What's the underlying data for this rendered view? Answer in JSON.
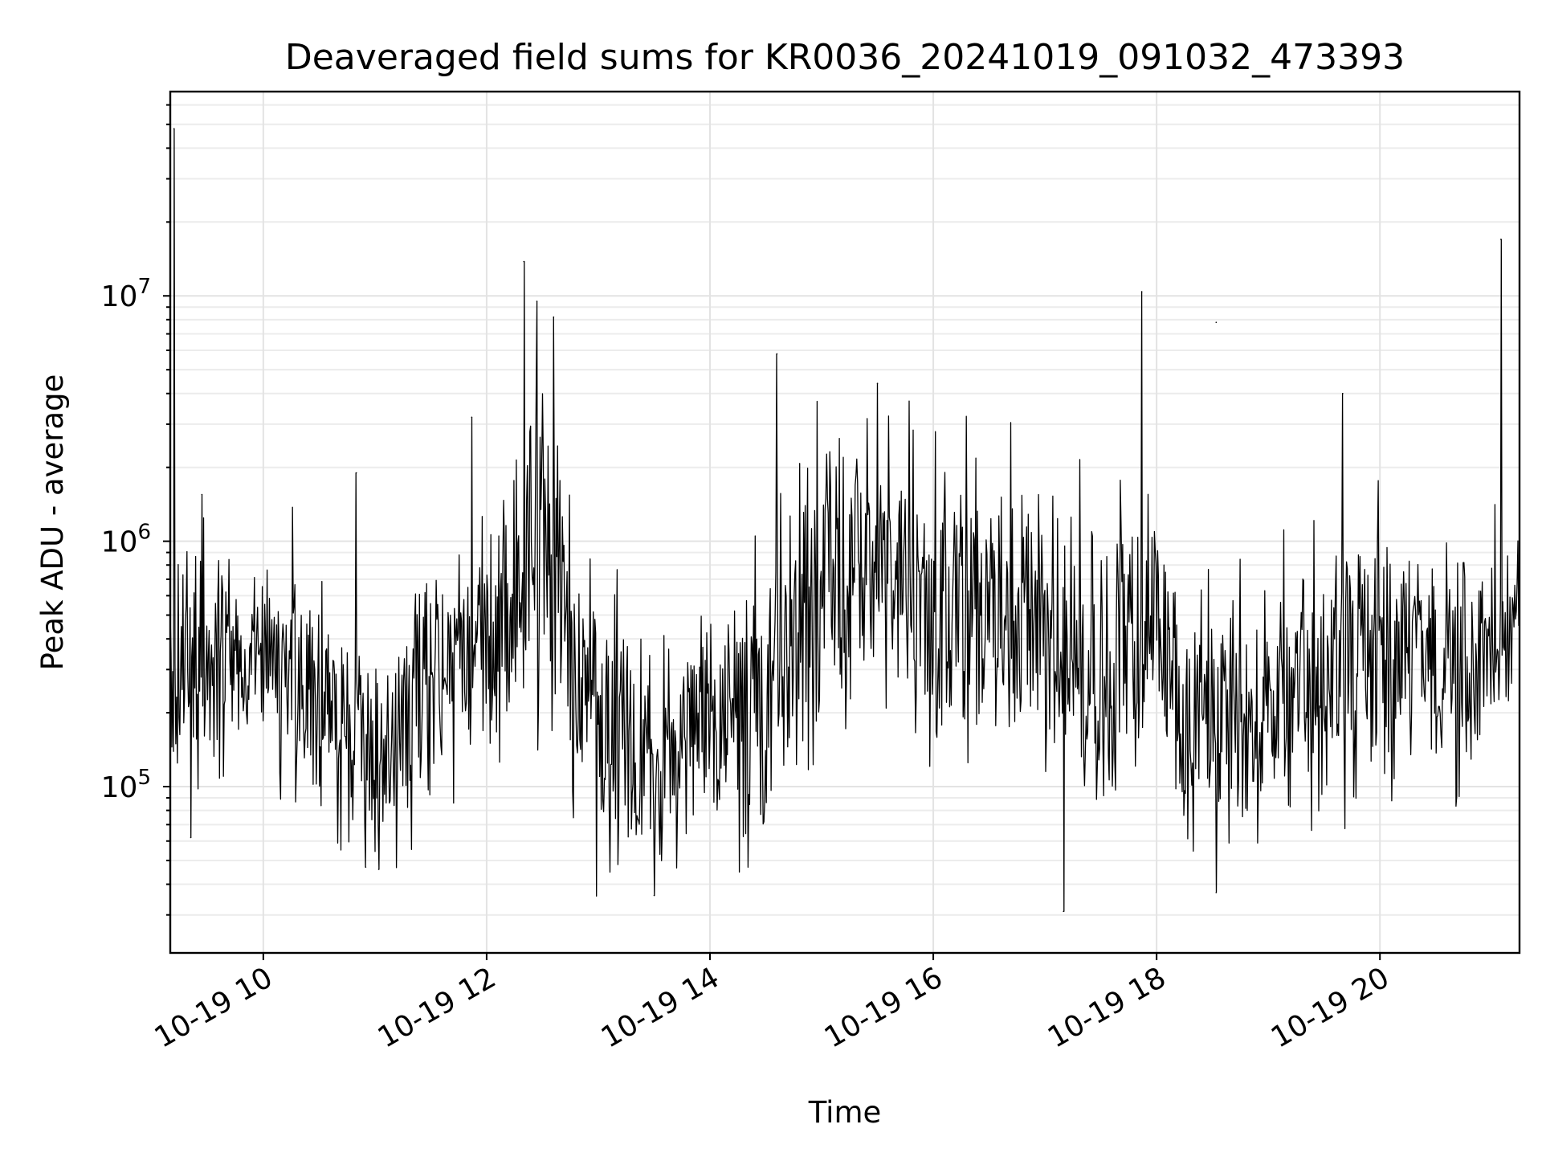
{
  "chart_data": {
    "type": "line",
    "title": "Deaveraged field sums for KR0036_20241019_091032_473393",
    "xlabel": "Time",
    "ylabel": "Peak ADU - average",
    "yscale": "log",
    "grid": true,
    "legend": "none",
    "xlim": [
      "2024-10-19T09:10",
      "2024-10-19T21:15"
    ],
    "ylim": [
      21000,
      68000000
    ],
    "x_ticks": [
      {
        "value": "2024-10-19T10:00",
        "label": "10-19 10"
      },
      {
        "value": "2024-10-19T12:00",
        "label": "10-19 12"
      },
      {
        "value": "2024-10-19T14:00",
        "label": "10-19 14"
      },
      {
        "value": "2024-10-19T16:00",
        "label": "10-19 16"
      },
      {
        "value": "2024-10-19T18:00",
        "label": "10-19 18"
      },
      {
        "value": "2024-10-19T20:00",
        "label": "10-19 20"
      }
    ],
    "y_ticks": [
      {
        "value": 100000,
        "base": "10",
        "exp": "5"
      },
      {
        "value": 1000000,
        "base": "10",
        "exp": "6"
      },
      {
        "value": 10000000,
        "base": "10",
        "exp": "7"
      }
    ],
    "series": [
      {
        "color": "#000000",
        "baseline_envelope": [
          {
            "t": "2024-10-19T09:10",
            "low": 100000,
            "high": 900000
          },
          {
            "t": "2024-10-19T09:45",
            "low": 180000,
            "high": 700000
          },
          {
            "t": "2024-10-19T10:30",
            "low": 140000,
            "high": 600000
          },
          {
            "t": "2024-10-19T11:00",
            "low": 55000,
            "high": 300000
          },
          {
            "t": "2024-10-19T11:30",
            "low": 120000,
            "high": 700000
          },
          {
            "t": "2024-10-19T12:00",
            "low": 170000,
            "high": 800000
          },
          {
            "t": "2024-10-19T12:30",
            "low": 250000,
            "high": 3500000
          },
          {
            "t": "2024-10-19T13:00",
            "low": 60000,
            "high": 500000
          },
          {
            "t": "2024-10-19T13:30",
            "low": 55000,
            "high": 300000
          },
          {
            "t": "2024-10-19T14:00",
            "low": 90000,
            "high": 500000
          },
          {
            "t": "2024-10-19T14:30",
            "low": 70000,
            "high": 600000
          },
          {
            "t": "2024-10-19T15:00",
            "low": 250000,
            "high": 2000000
          },
          {
            "t": "2024-10-19T15:30",
            "low": 400000,
            "high": 2200000
          },
          {
            "t": "2024-10-19T16:00",
            "low": 200000,
            "high": 1500000
          },
          {
            "t": "2024-10-19T17:00",
            "low": 180000,
            "high": 1400000
          },
          {
            "t": "2024-10-19T17:30",
            "low": 100000,
            "high": 1100000
          },
          {
            "t": "2024-10-19T18:00",
            "low": 200000,
            "high": 1200000
          },
          {
            "t": "2024-10-19T18:15",
            "low": 80000,
            "high": 400000
          },
          {
            "t": "2024-10-19T19:00",
            "low": 90000,
            "high": 450000
          },
          {
            "t": "2024-10-19T19:30",
            "low": 100000,
            "high": 700000
          },
          {
            "t": "2024-10-19T20:00",
            "low": 150000,
            "high": 900000
          },
          {
            "t": "2024-10-19T20:45",
            "low": 120000,
            "high": 700000
          },
          {
            "t": "2024-10-19T21:15",
            "low": 300000,
            "high": 1000000
          }
        ],
        "peaks": [
          {
            "t": "2024-10-19T09:12",
            "y": 48000000
          },
          {
            "t": "2024-10-19T09:27",
            "y": 1550000
          },
          {
            "t": "2024-10-19T10:50",
            "y": 1900000
          },
          {
            "t": "2024-10-19T11:52",
            "y": 3200000
          },
          {
            "t": "2024-10-19T12:20",
            "y": 13800000
          },
          {
            "t": "2024-10-19T12:27",
            "y": 9500000
          },
          {
            "t": "2024-10-19T12:36",
            "y": 8200000
          },
          {
            "t": "2024-10-19T14:36",
            "y": 5800000
          },
          {
            "t": "2024-10-19T15:30",
            "y": 4400000
          },
          {
            "t": "2024-10-19T17:52",
            "y": 10400000
          },
          {
            "t": "2024-10-19T18:32",
            "y": 7800000
          },
          {
            "t": "2024-10-19T19:40",
            "y": 4000000
          },
          {
            "t": "2024-10-19T21:05",
            "y": 17000000
          }
        ],
        "dips": [
          {
            "t": "2024-10-19T09:21",
            "y": 62000
          },
          {
            "t": "2024-10-19T10:55",
            "y": 47000
          },
          {
            "t": "2024-10-19T11:02",
            "y": 46000
          },
          {
            "t": "2024-10-19T13:30",
            "y": 36000
          },
          {
            "t": "2024-10-19T17:10",
            "y": 31000
          },
          {
            "t": "2024-10-19T18:32",
            "y": 37000
          }
        ]
      }
    ]
  }
}
